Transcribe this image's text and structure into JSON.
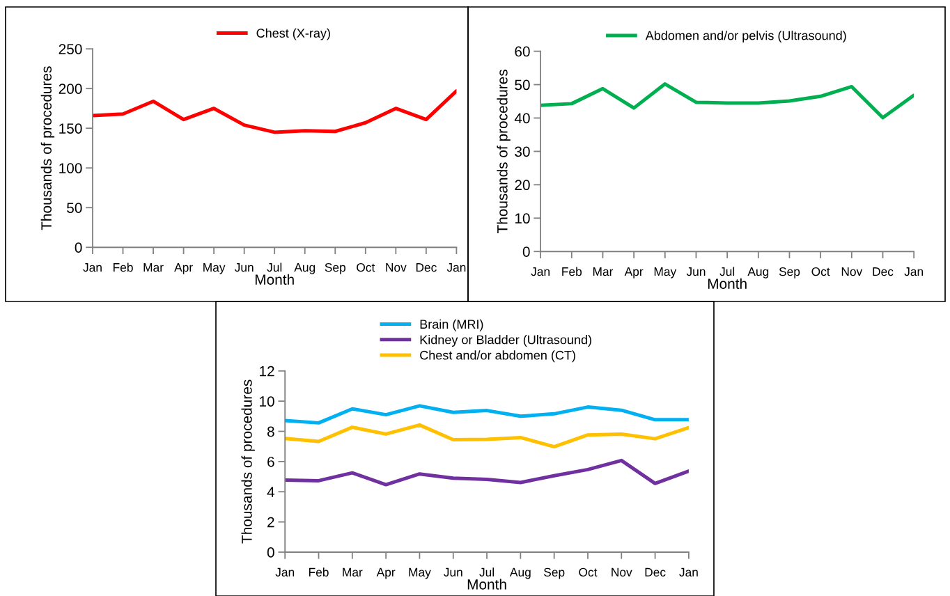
{
  "chart_data": [
    {
      "type": "line",
      "xlabel": "Month",
      "ylabel": "Thousands of procedures",
      "legend": "top",
      "ylim": [
        0,
        250
      ],
      "yticks": [
        0,
        50,
        100,
        150,
        200,
        250
      ],
      "categories": [
        "Jan",
        "Feb",
        "Mar",
        "Apr",
        "May",
        "Jun",
        "Jul",
        "Aug",
        "Sep",
        "Oct",
        "Nov",
        "Dec",
        "Jan"
      ],
      "series": [
        {
          "name": "Chest (X-ray)",
          "color": "#ff0000",
          "values": [
            166,
            168,
            184,
            161,
            175,
            154,
            145,
            147,
            146,
            157,
            175,
            161,
            197
          ]
        }
      ]
    },
    {
      "type": "line",
      "xlabel": "Month",
      "ylabel": "Thousands of procedures",
      "legend": "top",
      "ylim": [
        0,
        60
      ],
      "yticks": [
        0,
        10,
        20,
        30,
        40,
        50,
        60
      ],
      "categories": [
        "Jan",
        "Feb",
        "Mar",
        "Apr",
        "May",
        "Jun",
        "Jul",
        "Aug",
        "Sep",
        "Oct",
        "Nov",
        "Dec",
        "Jan"
      ],
      "series": [
        {
          "name": "Abdomen and/or pelvis (Ultrasound)",
          "color": "#00b050",
          "values": [
            43.8,
            44.3,
            48.8,
            43.0,
            50.2,
            44.7,
            44.5,
            44.5,
            45.1,
            46.5,
            49.4,
            40.1,
            46.8
          ]
        }
      ]
    },
    {
      "type": "line",
      "xlabel": "Month",
      "ylabel": "Thousands of procedures",
      "legend": "top",
      "ylim": [
        0,
        12
      ],
      "yticks": [
        0,
        2,
        4,
        6,
        8,
        10,
        12
      ],
      "categories": [
        "Jan",
        "Feb",
        "Mar",
        "Apr",
        "May",
        "Jun",
        "Jul",
        "Aug",
        "Sep",
        "Oct",
        "Nov",
        "Dec",
        "Jan"
      ],
      "series": [
        {
          "name": "Brain (MRI)",
          "color": "#00b0f0",
          "values": [
            8.72,
            8.56,
            9.49,
            9.1,
            9.69,
            9.26,
            9.38,
            9.0,
            9.16,
            9.61,
            9.4,
            8.77,
            8.77
          ]
        },
        {
          "name": "Kidney or Bladder (Ultrasound)",
          "color": "#7030a0",
          "values": [
            4.77,
            4.73,
            5.25,
            4.47,
            5.18,
            4.9,
            4.82,
            4.61,
            5.06,
            5.47,
            6.07,
            4.55,
            5.37
          ]
        },
        {
          "name": "Chest and/or abdomen (CT)",
          "color": "#ffc000",
          "values": [
            7.53,
            7.33,
            8.27,
            7.82,
            8.42,
            7.45,
            7.47,
            7.59,
            6.98,
            7.76,
            7.82,
            7.51,
            8.25
          ]
        }
      ]
    }
  ]
}
